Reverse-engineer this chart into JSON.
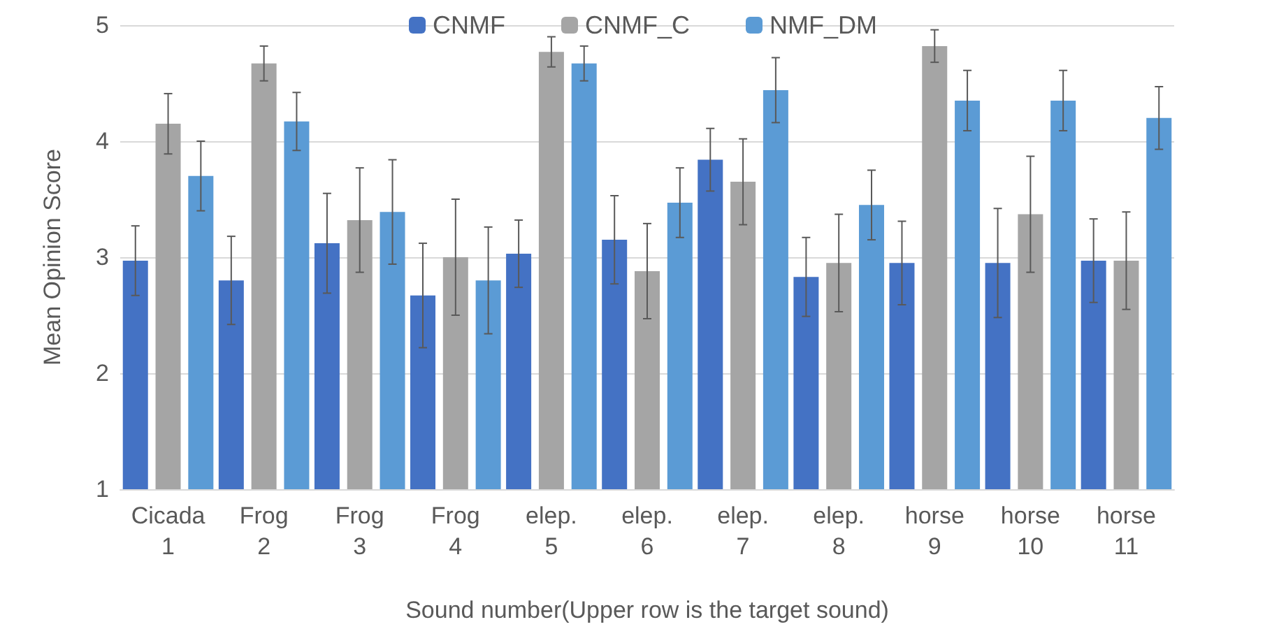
{
  "chart_data": {
    "type": "bar",
    "xlabel": "Sound number(Upper row is the target sound)",
    "ylabel": "Mean Opinion Score",
    "categories": [
      "Cicada\n1",
      "Frog\n2",
      "Frog\n3",
      "Frog\n4",
      "elep.\n5",
      "elep.\n6",
      "elep.\n7",
      "elep.\n8",
      "horse\n9",
      "horse\n10",
      "horse\n11"
    ],
    "series": [
      {
        "name": "CNMF",
        "color": "#4472c4",
        "values": [
          2.97,
          2.8,
          3.12,
          2.67,
          3.03,
          3.15,
          3.84,
          2.83,
          2.95,
          2.95,
          2.97
        ],
        "errors": [
          0.3,
          0.38,
          0.43,
          0.45,
          0.29,
          0.38,
          0.27,
          0.34,
          0.36,
          0.47,
          0.36
        ]
      },
      {
        "name": "CNMF_C",
        "color": "#a5a5a5",
        "values": [
          4.15,
          4.67,
          3.32,
          3.0,
          4.77,
          2.88,
          3.65,
          2.95,
          4.82,
          3.37,
          2.97
        ],
        "errors": [
          0.26,
          0.15,
          0.45,
          0.5,
          0.13,
          0.41,
          0.37,
          0.42,
          0.14,
          0.5,
          0.42
        ]
      },
      {
        "name": "NMF_DM",
        "color": "#5b9bd5",
        "values": [
          3.7,
          4.17,
          3.39,
          2.8,
          4.67,
          3.47,
          4.44,
          3.45,
          4.35,
          4.35,
          4.2
        ],
        "errors": [
          0.3,
          0.25,
          0.45,
          0.46,
          0.15,
          0.3,
          0.28,
          0.3,
          0.26,
          0.26,
          0.27
        ]
      }
    ],
    "ylim": [
      1,
      5
    ],
    "yticks": [
      1,
      2,
      3,
      4,
      5
    ],
    "grid": "y",
    "legend": "top"
  }
}
